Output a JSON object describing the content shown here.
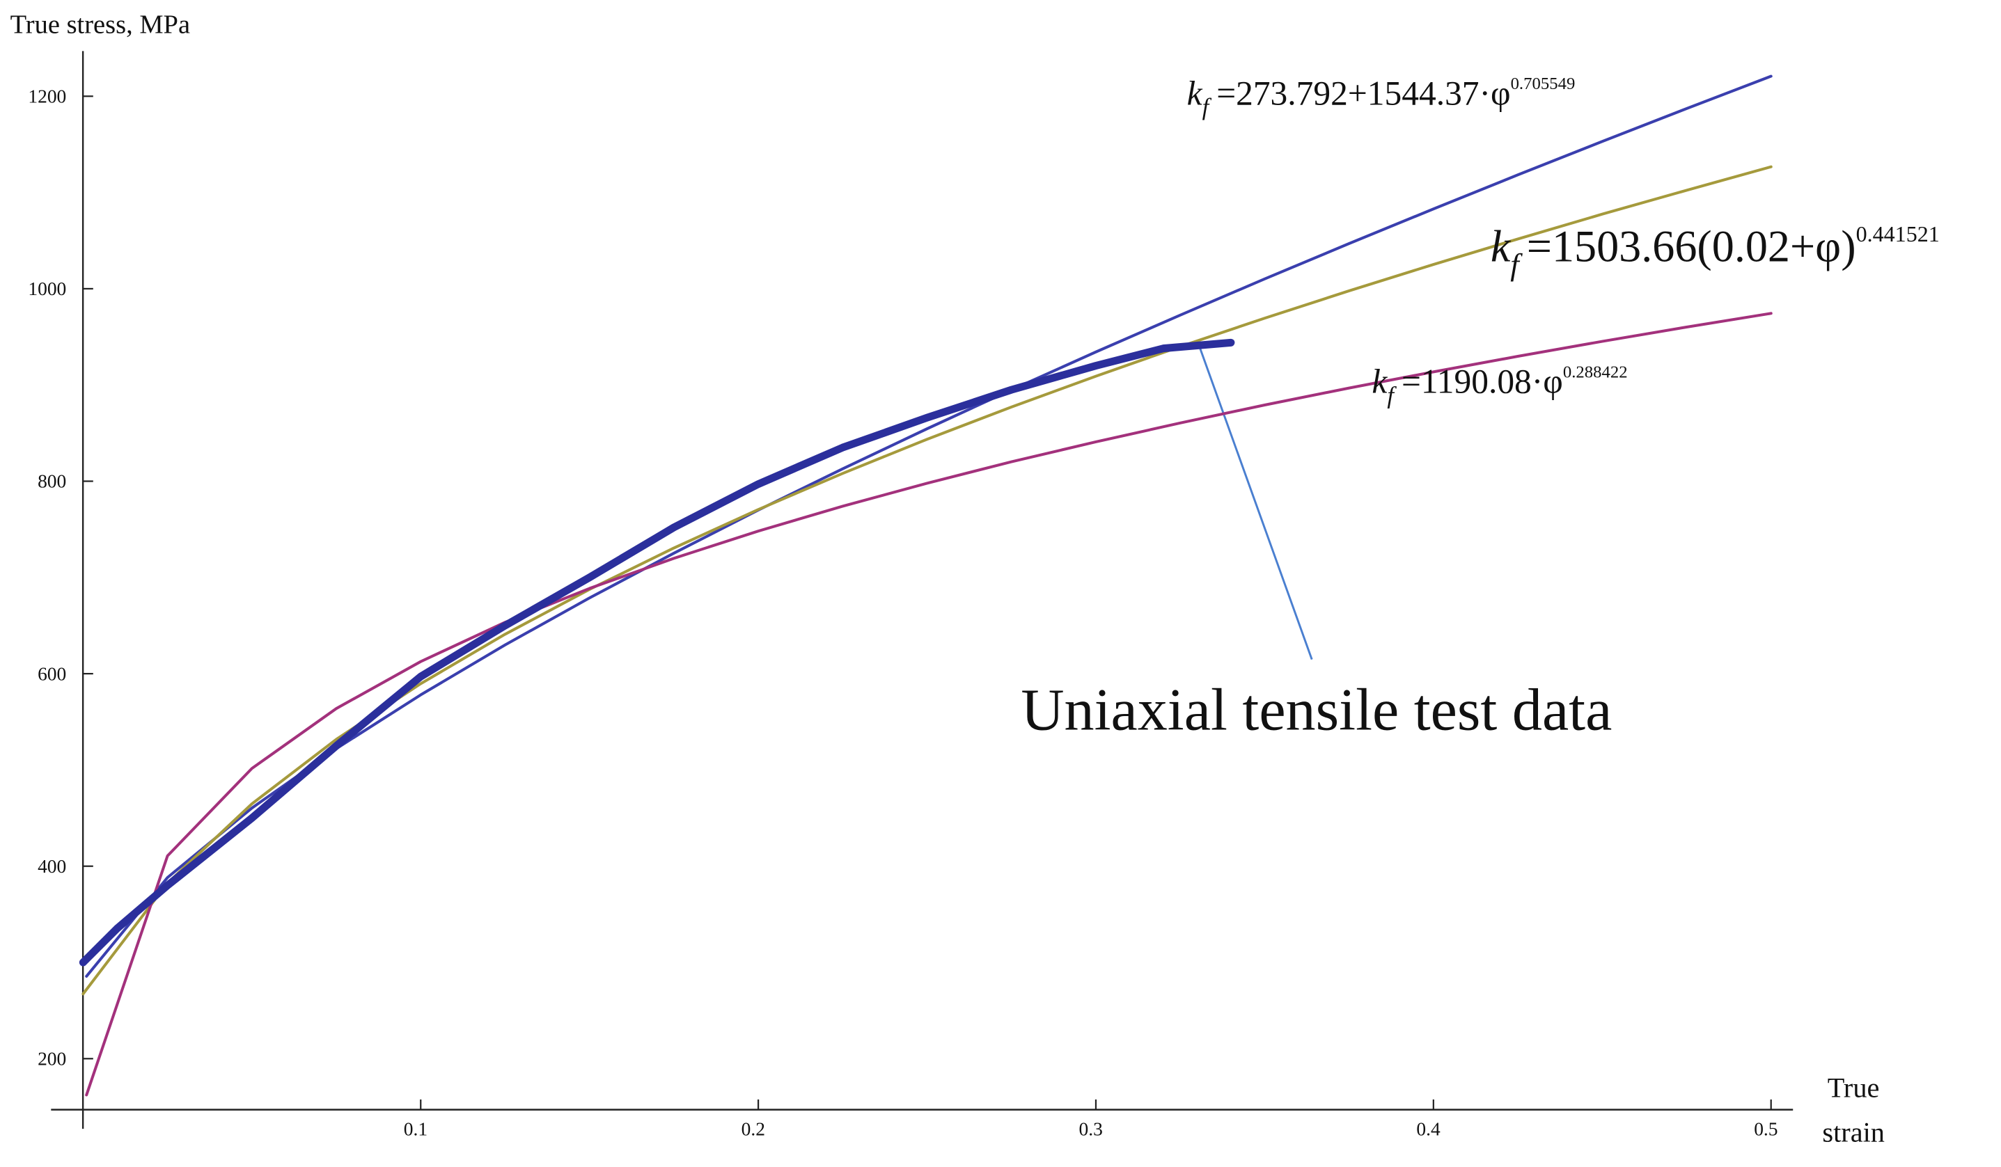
{
  "chart_data": {
    "type": "line",
    "y_label": "True stress, MPa",
    "x_label": [
      "True",
      "strain"
    ],
    "xlim": [
      -0.0095,
      0.5065
    ],
    "ylim": [
      147,
      1300
    ],
    "xticks": [
      0.1,
      0.2,
      0.3,
      0.4,
      0.5
    ],
    "yticks": [
      200,
      400,
      600,
      800,
      1000,
      1200
    ],
    "series": [
      {
        "color": "#3a3fae",
        "width": 2.2,
        "x": [
          0.001,
          0.025,
          0.05,
          0.075,
          0.1,
          0.125,
          0.15,
          0.175,
          0.2,
          0.225,
          0.25,
          0.275,
          0.3,
          0.325,
          0.35,
          0.375,
          0.4,
          0.425,
          0.45,
          0.475,
          0.5
        ],
        "values": [
          285.6,
          388.2,
          460.4,
          522.1,
          578.0,
          629.9,
          678.7,
          725.2,
          770.0,
          812.9,
          854.5,
          894.9,
          934.3,
          972.6,
          1010.2,
          1046.9,
          1082.9,
          1118.3,
          1153.0,
          1187.2,
          1220.8
        ]
      },
      {
        "color": "#a59a3c",
        "width": 2.2,
        "x": [
          0,
          0.025,
          0.05,
          0.075,
          0.1,
          0.125,
          0.15,
          0.175,
          0.2,
          0.225,
          0.25,
          0.275,
          0.3,
          0.325,
          0.35,
          0.375,
          0.4,
          0.425,
          0.45,
          0.475,
          0.5
        ],
        "values": [
          267.3,
          382.4,
          464.8,
          531.8,
          589.6,
          641.0,
          687.6,
          730.6,
          770.6,
          808.1,
          843.6,
          877.1,
          909.1,
          939.9,
          969.4,
          997.8,
          1025.2,
          1051.7,
          1077.5,
          1102.3,
          1126.7
        ]
      },
      {
        "color": "#a3317c",
        "width": 2.2,
        "x": [
          0.001,
          0.025,
          0.05,
          0.075,
          0.1,
          0.125,
          0.15,
          0.175,
          0.2,
          0.225,
          0.25,
          0.275,
          0.3,
          0.325,
          0.35,
          0.375,
          0.4,
          0.425,
          0.45,
          0.475,
          0.5
        ],
        "values": [
          162.3,
          410.7,
          501.6,
          563.8,
          612.6,
          653.4,
          688.6,
          719.9,
          748.2,
          774.0,
          797.9,
          820.2,
          840.9,
          860.5,
          879.2,
          896.8,
          913.6,
          929.8,
          945.3,
          960.2,
          974.4
        ]
      },
      {
        "color": "#2b2f9c",
        "width": 6,
        "x": [
          0,
          0.01,
          0.025,
          0.05,
          0.075,
          0.1,
          0.125,
          0.15,
          0.175,
          0.2,
          0.225,
          0.25,
          0.275,
          0.3,
          0.32,
          0.34
        ],
        "values": [
          300,
          335,
          380,
          450,
          525,
          597,
          650,
          700,
          752,
          797,
          835,
          866,
          895,
          920,
          938,
          944
        ]
      }
    ],
    "equations": [
      {
        "k": "k",
        "sub": "f",
        "text": "=273.792+1544.37·φ",
        "sup": "0.705549"
      },
      {
        "k": "k",
        "sub": "f",
        "text": "=1503.66(0.02+φ)",
        "sup": "0.441521"
      },
      {
        "k": "k",
        "sub": "f",
        "text": "=1190.08·φ",
        "sup": "0.288422"
      }
    ],
    "callout": "Uniaxial tensile test data"
  }
}
